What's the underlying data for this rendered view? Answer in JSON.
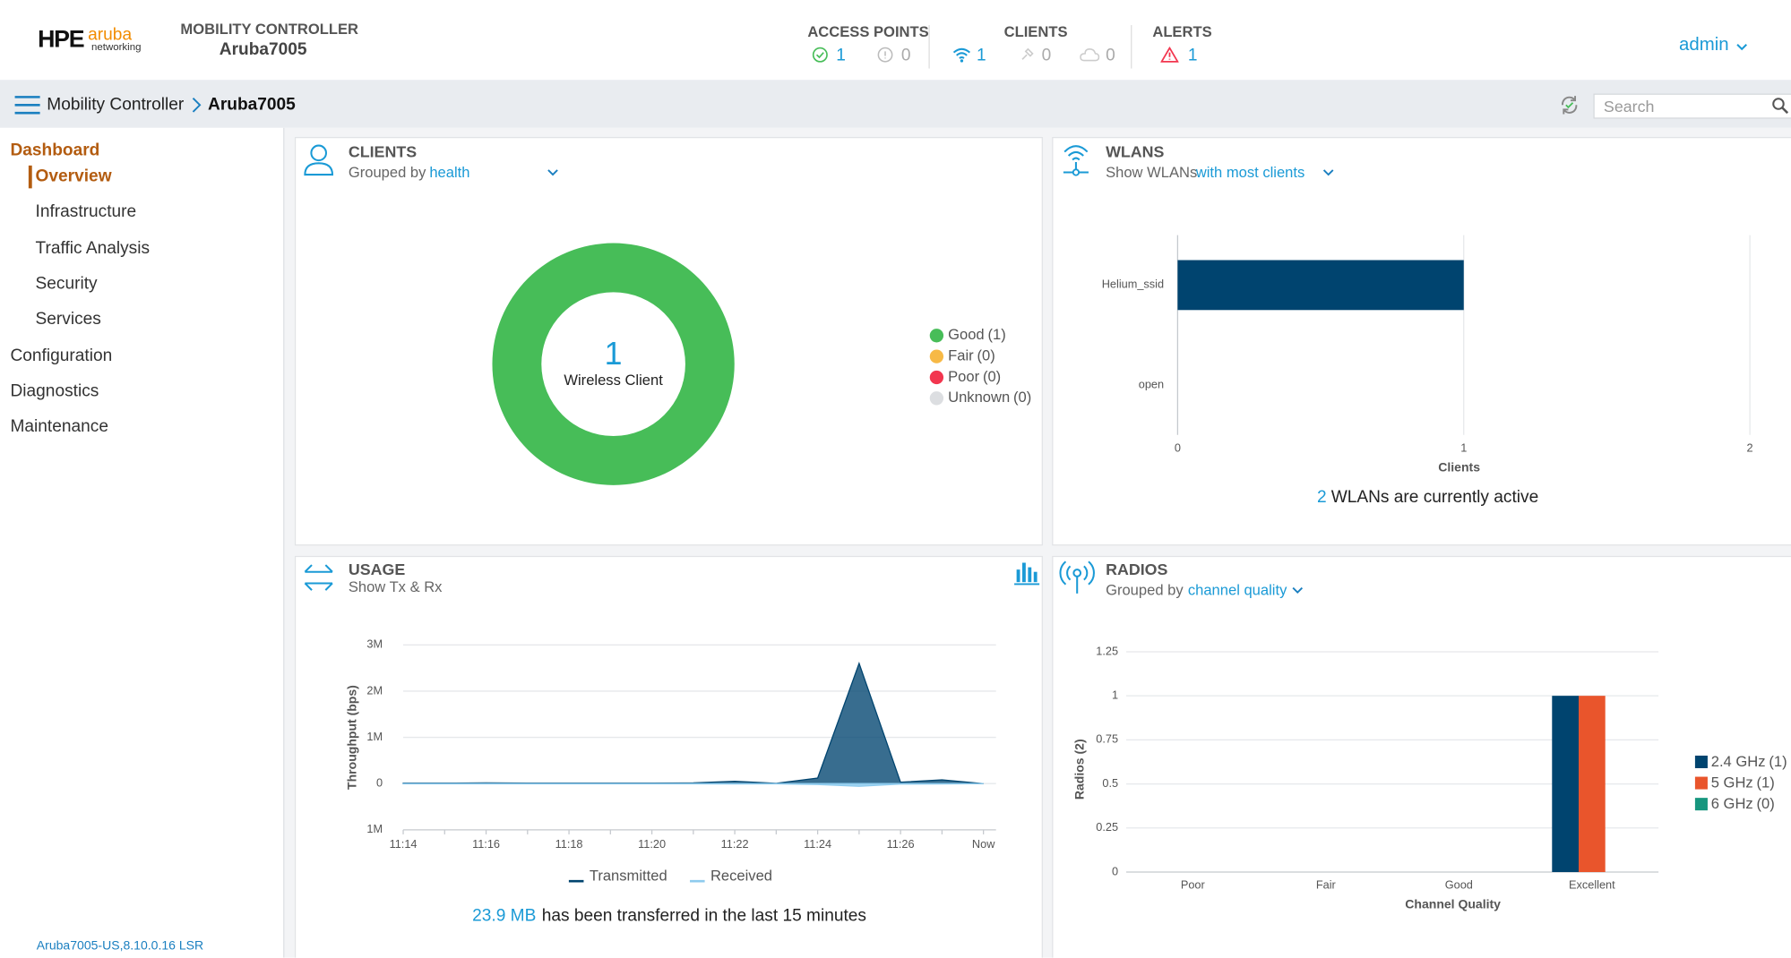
{
  "header": {
    "logo": {
      "brand": "HPE",
      "product": "aruba",
      "sub": "networking"
    },
    "controller_label": "MOBILITY CONTROLLER",
    "controller_name": "Aruba7005",
    "access_points": {
      "label": "ACCESS POINTS",
      "up": 1,
      "down": 0
    },
    "clients": {
      "label": "CLIENTS",
      "wireless": 1,
      "wired": 0,
      "remote": 0
    },
    "alerts": {
      "label": "ALERTS",
      "count": 1
    },
    "user": "admin"
  },
  "breadcrumb": {
    "items": [
      "Mobility Controller",
      "Aruba7005"
    ],
    "search_placeholder": "Search"
  },
  "sidebar": {
    "items": [
      {
        "label": "Dashboard",
        "children": [
          "Overview",
          "Infrastructure",
          "Traffic Analysis",
          "Security",
          "Services"
        ]
      },
      {
        "label": "Configuration"
      },
      {
        "label": "Diagnostics"
      },
      {
        "label": "Maintenance"
      }
    ],
    "version": "Aruba7005-US,8.10.0.16 LSR"
  },
  "panels": [
    {
      "title": "CLIENTS",
      "filter_label": "Grouped by",
      "filter_value": "health"
    },
    {
      "title": "WLANS",
      "filter_label": "Show WLANs",
      "filter_value": "with most clients",
      "summary_count": 2,
      "summary_text": "WLANs are currently active"
    },
    {
      "title": "USAGE",
      "subtitle": "Show Tx & Rx",
      "summary_amount": "23.9 MB",
      "summary_text": "has been transferred in the last 15 minutes"
    },
    {
      "title": "RADIOS",
      "filter_label": "Grouped by",
      "filter_value": "channel quality"
    }
  ],
  "chart_data": [
    {
      "type": "donut",
      "center_value": 1,
      "center_label": "Wireless Client",
      "categories": [
        "Good",
        "Fair",
        "Poor",
        "Unknown"
      ],
      "values": [
        1,
        0,
        0,
        0
      ],
      "value_labels": [
        "(1)",
        "(0)",
        "(0)",
        "(0)"
      ],
      "colors": [
        "#47bd58",
        "#f7b946",
        "#f2364f",
        "#dcdee1"
      ]
    },
    {
      "type": "hbar",
      "categories": [
        "Helium_ssid",
        "open"
      ],
      "values": [
        1,
        0
      ],
      "color": "#00446f",
      "xlim": [
        0,
        2
      ],
      "xticks": [
        0,
        1,
        2
      ],
      "x_label": "Clients",
      "grid": true
    },
    {
      "type": "area",
      "categories": [
        "11:14",
        null,
        "11:16",
        null,
        "11:18",
        null,
        "11:20",
        null,
        "11:22",
        null,
        "11:24",
        null,
        "11:26",
        null,
        "Now"
      ],
      "series": [
        {
          "name": "Transmitted",
          "color": "#00446f",
          "values": [
            10000,
            10000,
            15000,
            10000,
            10000,
            10000,
            12000,
            15000,
            50000,
            5000,
            120000,
            2600000,
            30000,
            80000,
            0
          ]
        },
        {
          "name": "Received",
          "color": "#8ecbee",
          "values": [
            -5000,
            -5000,
            -5000,
            -5000,
            -5000,
            -5000,
            -5000,
            -5000,
            -8000,
            -5000,
            -20000,
            -60000,
            -10000,
            -8000,
            0
          ]
        }
      ],
      "ylim": [
        -1000000,
        3000000
      ],
      "yticks": [
        {
          "value": -1000000,
          "label": "1M"
        },
        0,
        {
          "value": 1000000,
          "label": "1M"
        },
        {
          "value": 2000000,
          "label": "2M"
        },
        {
          "value": 3000000,
          "label": "3M"
        }
      ],
      "y_label": "Throughput (bps)",
      "grid": true
    },
    {
      "type": "grouped_bar",
      "categories": [
        "Poor",
        "Fair",
        "Good",
        "Excellent"
      ],
      "series": [
        {
          "name": "2.4 GHz",
          "color": "#00446f",
          "values": [
            0,
            0,
            0,
            1
          ],
          "count_label": "(1)"
        },
        {
          "name": "5 GHz",
          "color": "#e9552c",
          "values": [
            0,
            0,
            0,
            1
          ],
          "count_label": "(1)"
        },
        {
          "name": "6 GHz",
          "color": "#17967e",
          "values": [
            0,
            0,
            0,
            0
          ],
          "count_label": "(0)"
        }
      ],
      "ylim": [
        0,
        1.25
      ],
      "yticks": [
        0,
        0.25,
        0.5,
        0.75,
        1,
        1.25
      ],
      "x_label": "Channel Quality",
      "y_label": "Radios (2)",
      "grid": true
    }
  ]
}
